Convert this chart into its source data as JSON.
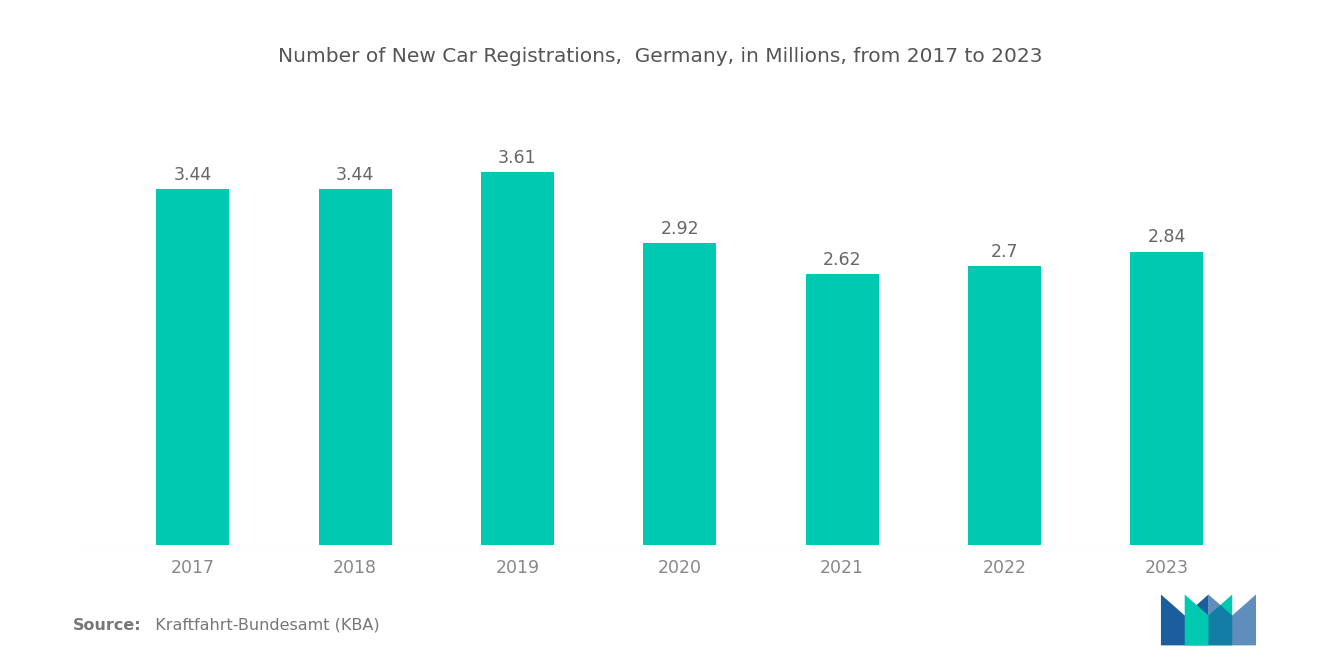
{
  "title": "Number of New Car Registrations,  Germany, in Millions, from 2017 to 2023",
  "years": [
    "2017",
    "2018",
    "2019",
    "2020",
    "2021",
    "2022",
    "2023"
  ],
  "values": [
    3.44,
    3.44,
    3.61,
    2.92,
    2.62,
    2.7,
    2.84
  ],
  "bar_color": "#00C9B1",
  "background_color": "#ffffff",
  "title_fontsize": 14.5,
  "label_fontsize": 12.5,
  "tick_fontsize": 12.5,
  "source_bold": "Source:",
  "source_normal": "  Kraftfahrt-Bundesamt (KBA)",
  "source_fontsize": 11.5,
  "ylim": [
    0,
    4.5
  ],
  "bar_width": 0.45,
  "value_label_color": "#666666",
  "axis_label_color": "#888888",
  "title_color": "#555555",
  "logo_blue": "#1B5EA0",
  "logo_teal": "#00C9B1"
}
